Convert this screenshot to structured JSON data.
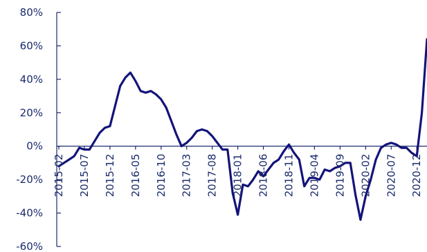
{
  "chart_data": {
    "type": "line",
    "title": "",
    "xlabel": "",
    "ylabel": "",
    "ylim": [
      -60,
      80
    ],
    "y_ticks": [
      "80%",
      "60%",
      "40%",
      "20%",
      "0%",
      "-20%",
      "-40%",
      "-60%"
    ],
    "y_tick_values": [
      80,
      60,
      40,
      20,
      0,
      -20,
      -40,
      -60
    ],
    "x_tick_labels": [
      "2015-02",
      "2015-07",
      "2015-12",
      "2016-05",
      "2016-10",
      "2017-03",
      "2017-08",
      "2018-01",
      "2018-06",
      "2018-11",
      "2019-04",
      "2019-09",
      "2020-02",
      "2020-07",
      "2020-12"
    ],
    "x_tick_indices": [
      0,
      5,
      10,
      15,
      20,
      25,
      30,
      35,
      40,
      45,
      50,
      55,
      60,
      65,
      70
    ],
    "series_color": "#13137a",
    "x": [
      "2015-02",
      "2015-03",
      "2015-04",
      "2015-05",
      "2015-06",
      "2015-07",
      "2015-08",
      "2015-09",
      "2015-10",
      "2015-11",
      "2015-12",
      "2016-01",
      "2016-02",
      "2016-03",
      "2016-04",
      "2016-05",
      "2016-06",
      "2016-07",
      "2016-08",
      "2016-09",
      "2016-10",
      "2016-11",
      "2016-12",
      "2017-01",
      "2017-02",
      "2017-03",
      "2017-04",
      "2017-05",
      "2017-06",
      "2017-07",
      "2017-08",
      "2017-09",
      "2017-10",
      "2017-11",
      "2017-12",
      "2018-01",
      "2018-02",
      "2018-03",
      "2018-04",
      "2018-05",
      "2018-06",
      "2018-07",
      "2018-08",
      "2018-09",
      "2018-10",
      "2018-11",
      "2018-12",
      "2019-01",
      "2019-02",
      "2019-03",
      "2019-04",
      "2019-05",
      "2019-06",
      "2019-07",
      "2019-08",
      "2019-09",
      "2019-10",
      "2019-11",
      "2019-12",
      "2020-01",
      "2020-02",
      "2020-03",
      "2020-04",
      "2020-05",
      "2020-06",
      "2020-07",
      "2020-08",
      "2020-09",
      "2020-10",
      "2020-11",
      "2020-12",
      "2021-01",
      "2021-02"
    ],
    "series": [
      {
        "values": [
          -12,
          -10,
          -8,
          -6,
          -1,
          -2,
          -2,
          3,
          8,
          11,
          12,
          24,
          36,
          41,
          44,
          39,
          33,
          32,
          33,
          31,
          28,
          23,
          15,
          7,
          0,
          2,
          5,
          9,
          10,
          9,
          6,
          2,
          -2,
          -2,
          -28,
          -41,
          -23,
          -24,
          -20,
          -15,
          -18,
          -14,
          -10,
          -8,
          -3,
          1,
          -4,
          -8,
          -24,
          -19,
          -19,
          -20,
          -14,
          -15,
          -13,
          -12,
          -10,
          -10,
          -29,
          -44,
          -30,
          -20,
          -8,
          -1,
          1,
          2,
          1,
          -1,
          -1,
          -4,
          -6,
          20,
          64
        ]
      }
    ]
  }
}
